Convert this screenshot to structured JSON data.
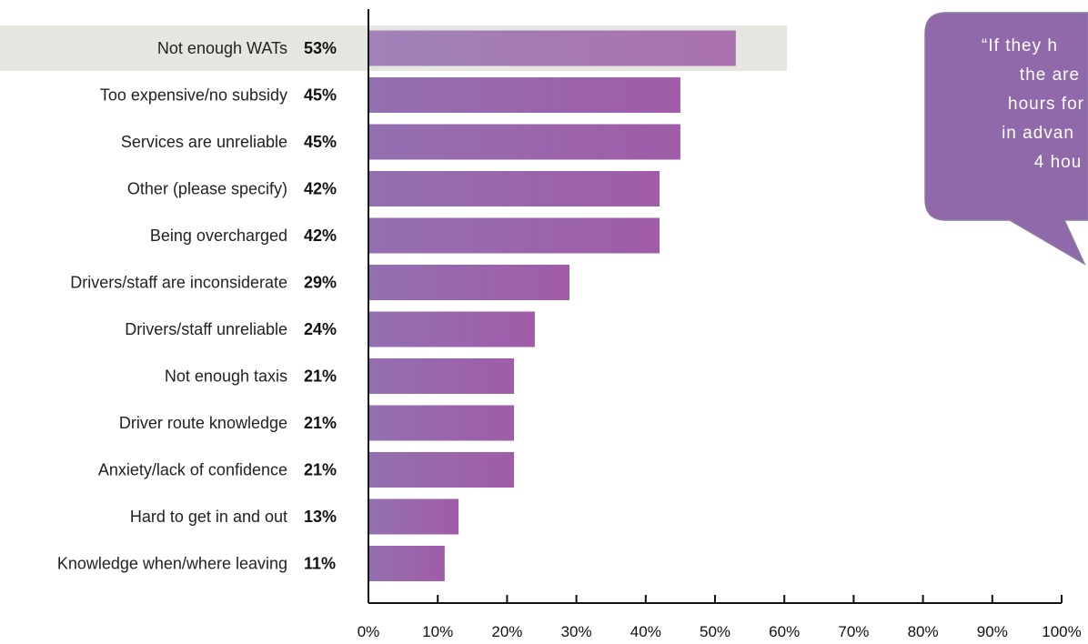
{
  "chart_data": {
    "type": "bar",
    "orientation": "horizontal",
    "categories": [
      "Not enough WATs",
      "Too expensive/no subsidy",
      "Services are unreliable",
      "Other (please specify)",
      "Being overcharged",
      "Drivers/staff are inconsiderate",
      "Drivers/staff unreliable",
      "Not enough taxis",
      "Driver route knowledge",
      "Anxiety/lack of confidence",
      "Hard to get in and out",
      "Knowledge when/where leaving"
    ],
    "values": [
      53,
      45,
      45,
      42,
      42,
      29,
      24,
      21,
      21,
      21,
      13,
      11
    ],
    "value_labels": [
      "53%",
      "45%",
      "45%",
      "42%",
      "42%",
      "29%",
      "24%",
      "21%",
      "21%",
      "21%",
      "13%",
      "11%"
    ],
    "highlighted_category": "Not enough WATs",
    "xlim": [
      0,
      100
    ],
    "x_ticks": [
      0,
      10,
      20,
      30,
      40,
      50,
      60,
      70,
      80,
      90,
      100
    ],
    "x_tick_labels": [
      "0%",
      "10%",
      "20%",
      "30%",
      "40%",
      "50%",
      "60%",
      "70%",
      "80%",
      "90%",
      "100%"
    ],
    "title": "",
    "xlabel": "",
    "ylabel": "",
    "grid": false,
    "bar_color_start": "#9370b1",
    "bar_color_end": "#a05ca8",
    "highlight_band_color": "#e6e6e0"
  },
  "callout": {
    "lines": [
      "“If they h",
      "the are",
      "hours for",
      "in advan",
      "4 hou"
    ],
    "color": "#9069aa"
  }
}
